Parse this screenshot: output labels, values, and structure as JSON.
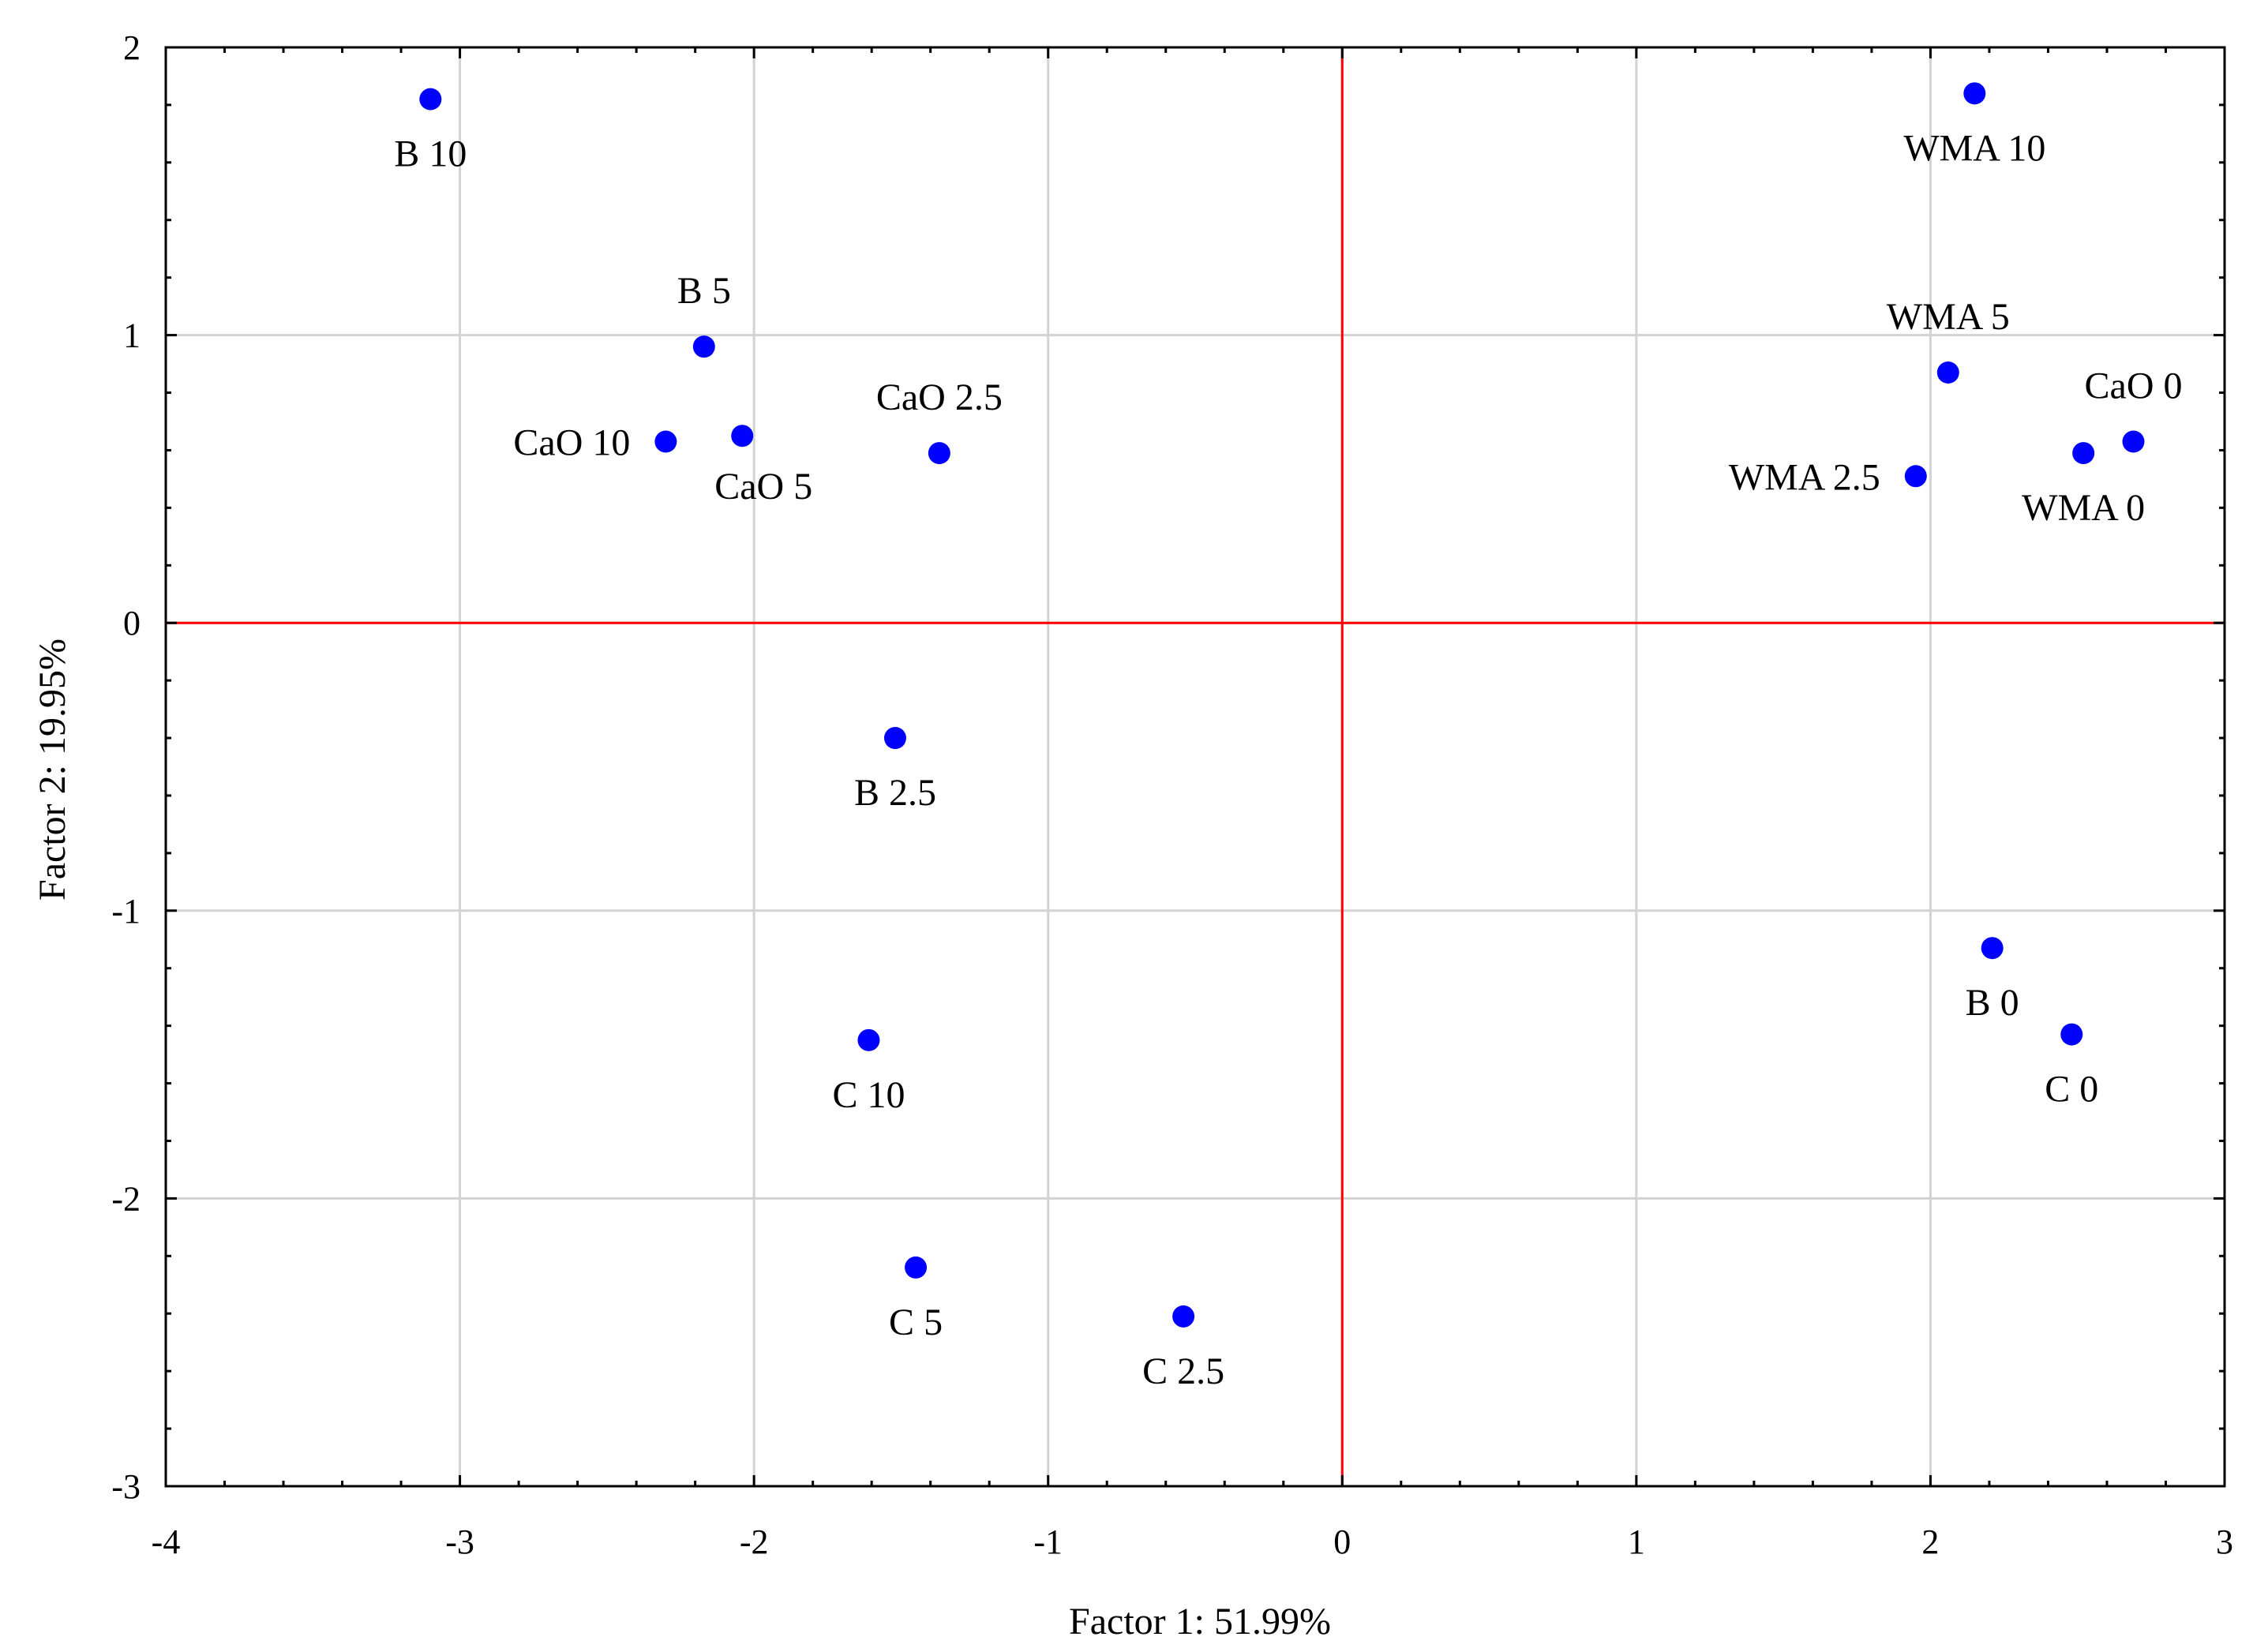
{
  "chart_data": {
    "type": "scatter",
    "title": "",
    "xlabel": "Factor 1: 51.99%",
    "ylabel": "Factor 2: 19.95%",
    "xlim": [
      -4,
      3
    ],
    "ylim": [
      -3,
      2
    ],
    "xticks": [
      -4,
      -3,
      -2,
      -1,
      0,
      1,
      2,
      3
    ],
    "yticks": [
      -3,
      -2,
      -1,
      0,
      1,
      2
    ],
    "grid": true,
    "reference_lines": {
      "x": 0,
      "y": 0,
      "color": "#ff0000"
    },
    "point_color": "#0000ff",
    "points": [
      {
        "label": "B 10",
        "x": -3.1,
        "y": 1.82,
        "anchor": "below"
      },
      {
        "label": "B 5",
        "x": -2.17,
        "y": 0.96,
        "anchor": "above"
      },
      {
        "label": "CaO 10",
        "x": -2.3,
        "y": 0.63,
        "anchor": "left"
      },
      {
        "label": "CaO 5",
        "x": -2.04,
        "y": 0.65,
        "anchor": "below-right"
      },
      {
        "label": "CaO 2.5",
        "x": -1.37,
        "y": 0.59,
        "anchor": "above"
      },
      {
        "label": "B 2.5",
        "x": -1.52,
        "y": -0.4,
        "anchor": "below"
      },
      {
        "label": "C 10",
        "x": -1.61,
        "y": -1.45,
        "anchor": "below"
      },
      {
        "label": "C 5",
        "x": -1.45,
        "y": -2.24,
        "anchor": "below"
      },
      {
        "label": "C 2.5",
        "x": -0.54,
        "y": -2.41,
        "anchor": "below"
      },
      {
        "label": "WMA 10",
        "x": 2.15,
        "y": 1.84,
        "anchor": "below"
      },
      {
        "label": "WMA 5",
        "x": 2.06,
        "y": 0.87,
        "anchor": "above"
      },
      {
        "label": "CaO 0",
        "x": 2.69,
        "y": 0.63,
        "anchor": "above"
      },
      {
        "label": "WMA 2.5",
        "x": 1.95,
        "y": 0.51,
        "anchor": "left"
      },
      {
        "label": "WMA 0",
        "x": 2.52,
        "y": 0.59,
        "anchor": "below"
      },
      {
        "label": "B 0",
        "x": 2.21,
        "y": -1.13,
        "anchor": "below"
      },
      {
        "label": "C 0",
        "x": 2.48,
        "y": -1.43,
        "anchor": "below"
      }
    ]
  }
}
